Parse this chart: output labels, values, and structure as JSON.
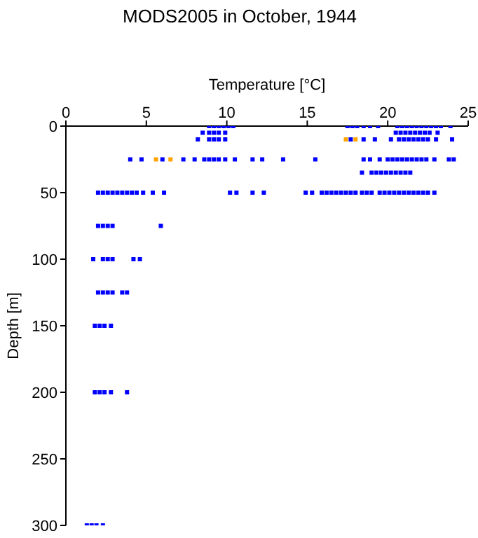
{
  "chart_data": {
    "type": "scatter",
    "title": "MODS2005 in October, 1944",
    "xlabel": "Temperature [°C]",
    "ylabel": "Depth [m]",
    "xlim": [
      0,
      25
    ],
    "xticks": [
      0,
      5,
      10,
      15,
      20,
      25
    ],
    "ylim": [
      300,
      0
    ],
    "yticks": [
      0,
      50,
      100,
      150,
      200,
      250,
      300
    ],
    "grid": false,
    "legend": false,
    "marker": "square",
    "series": [
      {
        "color": "#0000ff",
        "x": [
          8.9,
          9.2,
          9.5,
          9.8,
          10.1,
          10.4,
          17.5,
          17.8,
          18.1,
          18.5,
          18.9,
          19.4,
          20.6,
          20.9,
          21.2,
          21.5,
          21.8,
          22.1,
          22.4,
          22.7,
          23.0,
          23.3,
          23.9,
          8.5,
          8.9,
          9.2,
          9.5,
          9.9,
          20.5,
          20.8,
          21.1,
          21.4,
          21.7,
          22.0,
          22.3,
          22.6,
          23.1,
          8.2,
          8.9,
          9.2,
          9.5,
          9.9,
          17.7,
          18.5,
          19.2,
          20.2,
          20.7,
          21.0,
          21.3,
          21.6,
          21.9,
          22.2,
          22.5,
          23.0,
          24.0,
          4.0,
          4.7,
          6.0,
          7.3,
          8.0,
          8.6,
          8.9,
          9.2,
          9.5,
          9.9,
          10.5,
          11.6,
          12.2,
          13.5,
          15.5,
          18.5,
          18.9,
          19.5,
          20.0,
          20.3,
          20.6,
          20.9,
          21.2,
          21.5,
          21.8,
          22.1,
          22.4,
          22.9,
          23.8,
          24.1,
          18.4,
          19.0,
          19.3,
          19.6,
          19.9,
          20.2,
          20.5,
          20.8,
          21.1,
          21.4,
          2.0,
          2.3,
          2.6,
          2.9,
          3.2,
          3.5,
          3.8,
          4.1,
          4.4,
          4.8,
          5.4,
          6.1,
          10.2,
          10.6,
          11.6,
          12.3,
          14.9,
          15.3,
          15.9,
          16.2,
          16.5,
          16.8,
          17.1,
          17.4,
          17.7,
          18.0,
          18.4,
          18.7,
          19.0,
          19.5,
          19.8,
          20.1,
          20.4,
          20.7,
          21.0,
          21.3,
          21.6,
          21.9,
          22.2,
          22.5,
          22.9,
          2.0,
          2.3,
          2.6,
          2.9,
          5.9,
          1.7,
          2.3,
          2.6,
          2.9,
          4.2,
          4.6,
          2.0,
          2.3,
          2.6,
          2.9,
          3.5,
          3.8,
          1.8,
          2.1,
          2.4,
          2.8,
          1.8,
          2.1,
          2.4,
          2.8,
          3.8,
          1.3,
          1.6,
          1.9,
          2.3
        ],
        "values": [
          0,
          0,
          0,
          0,
          0,
          0,
          0,
          0,
          0,
          0,
          0,
          0,
          0,
          0,
          0,
          0,
          0,
          0,
          0,
          0,
          0,
          0,
          0,
          5,
          5,
          5,
          5,
          5,
          5,
          5,
          5,
          5,
          5,
          5,
          5,
          5,
          5,
          10,
          10,
          10,
          10,
          10,
          10,
          10,
          10,
          10,
          10,
          10,
          10,
          10,
          10,
          10,
          10,
          10,
          10,
          25,
          25,
          25,
          25,
          25,
          25,
          25,
          25,
          25,
          25,
          25,
          25,
          25,
          25,
          25,
          25,
          25,
          25,
          25,
          25,
          25,
          25,
          25,
          25,
          25,
          25,
          25,
          25,
          25,
          25,
          35,
          35,
          35,
          35,
          35,
          35,
          35,
          35,
          35,
          35,
          50,
          50,
          50,
          50,
          50,
          50,
          50,
          50,
          50,
          50,
          50,
          50,
          50,
          50,
          50,
          50,
          50,
          50,
          50,
          50,
          50,
          50,
          50,
          50,
          50,
          50,
          50,
          50,
          50,
          50,
          50,
          50,
          50,
          50,
          50,
          50,
          50,
          50,
          50,
          50,
          50,
          75,
          75,
          75,
          75,
          75,
          100,
          100,
          100,
          100,
          100,
          100,
          125,
          125,
          125,
          125,
          125,
          125,
          150,
          150,
          150,
          150,
          200,
          200,
          200,
          200,
          200,
          300,
          300,
          300,
          300
        ]
      },
      {
        "color": "#ffa500",
        "x": [
          17.4,
          18.0,
          5.6,
          6.5
        ],
        "values": [
          10,
          10,
          25,
          25
        ]
      }
    ]
  }
}
